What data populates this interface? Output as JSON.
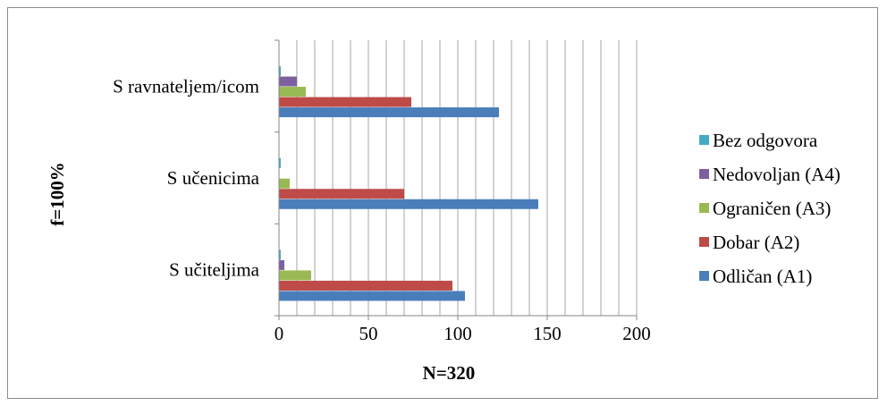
{
  "chart_data": {
    "type": "bar",
    "orientation": "horizontal",
    "categories": [
      "S učiteljima",
      "S učenicima",
      "S ravnateljem/icom"
    ],
    "series": [
      {
        "name": "Odličan (A1)",
        "color": "#4a7ebb",
        "values": [
          104,
          145,
          123
        ]
      },
      {
        "name": "Dobar (A2)",
        "color": "#be4b48",
        "values": [
          97,
          70,
          74
        ]
      },
      {
        "name": "Ograničen (A3)",
        "color": "#98b954",
        "values": [
          18,
          6,
          15
        ]
      },
      {
        "name": "Nedovoljan (A4)",
        "color": "#7d60a0",
        "values": [
          3,
          0,
          10
        ]
      },
      {
        "name": "Bez odgovora",
        "color": "#46aac5",
        "values": [
          1,
          1,
          1
        ]
      }
    ],
    "xlim": [
      0,
      200
    ],
    "xticks": [
      0,
      50,
      100,
      150,
      200
    ],
    "xlabel": "N=320",
    "ylabel": "f=100%",
    "grid": "vertical, every 10",
    "legend_position": "right"
  }
}
